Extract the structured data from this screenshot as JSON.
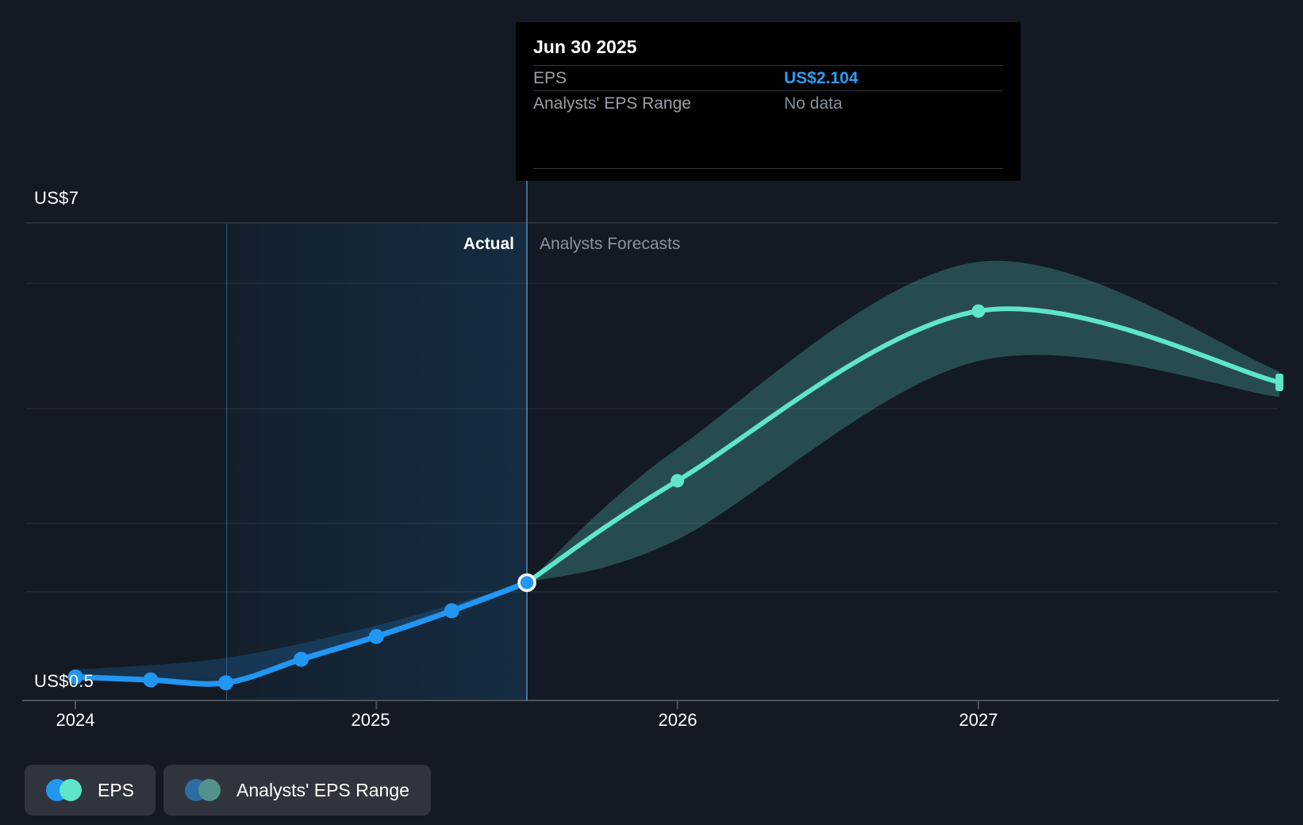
{
  "tooltip": {
    "date": "Jun 30 2025",
    "rows": [
      {
        "label": "EPS",
        "value": "US$2.104",
        "value_color": "#2b9df4"
      },
      {
        "label": "Analysts' EPS Range",
        "value": "No data",
        "value_color": "#87919b"
      }
    ]
  },
  "annotations": {
    "actual": "Actual",
    "forecast": "Analysts Forecasts"
  },
  "axis": {
    "y_top_label": "US$7",
    "y_bottom_label": "US$0.5",
    "x_labels": [
      "2024",
      "2025",
      "2026",
      "2027"
    ]
  },
  "legend": [
    {
      "label": "EPS",
      "dot_colors": [
        "#2196f3",
        "#5fe5c8"
      ]
    },
    {
      "label": "Analysts' EPS Range",
      "dot_colors": [
        "#2f6ca3",
        "#52918c"
      ]
    }
  ],
  "colors": {
    "background": "#131a23",
    "actual_line": "#2196f3",
    "forecast_line": "#5fe5c8",
    "forecast_band": "rgba(95,210,195,0.28)",
    "actual_band": "rgba(33,150,243,0.20)",
    "divider": "rgba(110,175,225,0.55)",
    "gridline": "rgba(255,255,255,0.10)",
    "axis_line": "#4a515a",
    "tooltip_bg": "#000000"
  },
  "chart_data": {
    "type": "line",
    "title": "EPS actual vs analysts forecasts over time",
    "x_unit": "calendar year (fractional)",
    "xlim": [
      2023.84,
      2028.05
    ],
    "ylim": [
      0.5,
      7.0
    ],
    "grid": true,
    "legend_position": "bottom-left",
    "y_axis_labels": [
      {
        "value": 7.0,
        "label": "US$7"
      },
      {
        "value": 0.5,
        "label": "US$0.5"
      }
    ],
    "x_ticks": [
      {
        "value": 2024,
        "label": "2024"
      },
      {
        "value": 2025,
        "label": "2025"
      },
      {
        "value": 2026,
        "label": "2026"
      },
      {
        "value": 2027,
        "label": "2027"
      }
    ],
    "gridlines_y": [
      7.0,
      6.18,
      4.47,
      2.91,
      1.98
    ],
    "divider_x": 2025.5,
    "highlight_span": [
      2024.5,
      2025.5
    ],
    "transition_point": {
      "x": 2025.5,
      "y": 2.104,
      "label": "Jun 30 2025"
    },
    "series": [
      {
        "name": "EPS (actual)",
        "color": "#2196f3",
        "points": [
          [
            2024.0,
            0.82
          ],
          [
            2024.25,
            0.78
          ],
          [
            2024.5,
            0.74
          ],
          [
            2024.75,
            1.06
          ],
          [
            2025.0,
            1.37
          ],
          [
            2025.25,
            1.72
          ],
          [
            2025.5,
            2.104
          ]
        ],
        "dot_indices": [
          0,
          1,
          2,
          3,
          4,
          5
        ]
      },
      {
        "name": "EPS (analysts forecast)",
        "color": "#5fe5c8",
        "points": [
          [
            2025.5,
            2.104
          ],
          [
            2026.0,
            3.49
          ],
          [
            2027.0,
            5.8
          ],
          [
            2028.0,
            4.83
          ]
        ],
        "dot_indices": [
          1,
          2
        ]
      }
    ],
    "bands": [
      {
        "name": "Actual EPS range",
        "color": "rgba(33,150,243,0.20)",
        "upper": [
          [
            2024.0,
            0.92
          ],
          [
            2024.5,
            1.08
          ],
          [
            2025.0,
            1.52
          ],
          [
            2025.5,
            2.104
          ]
        ],
        "lower": [
          [
            2024.0,
            0.82
          ],
          [
            2024.25,
            0.78
          ],
          [
            2024.5,
            0.74
          ],
          [
            2024.75,
            1.06
          ],
          [
            2025.0,
            1.37
          ],
          [
            2025.25,
            1.72
          ],
          [
            2025.5,
            2.104
          ]
        ]
      },
      {
        "name": "Analysts' EPS Range (forecast)",
        "color": "rgba(95,210,195,0.28)",
        "upper": [
          [
            2025.5,
            2.104
          ],
          [
            2026.0,
            3.93
          ],
          [
            2027.0,
            6.47
          ],
          [
            2028.0,
            4.98
          ]
        ],
        "lower": [
          [
            2025.5,
            2.104
          ],
          [
            2026.0,
            2.69
          ],
          [
            2027.0,
            5.12
          ],
          [
            2028.0,
            4.63
          ]
        ]
      }
    ]
  }
}
